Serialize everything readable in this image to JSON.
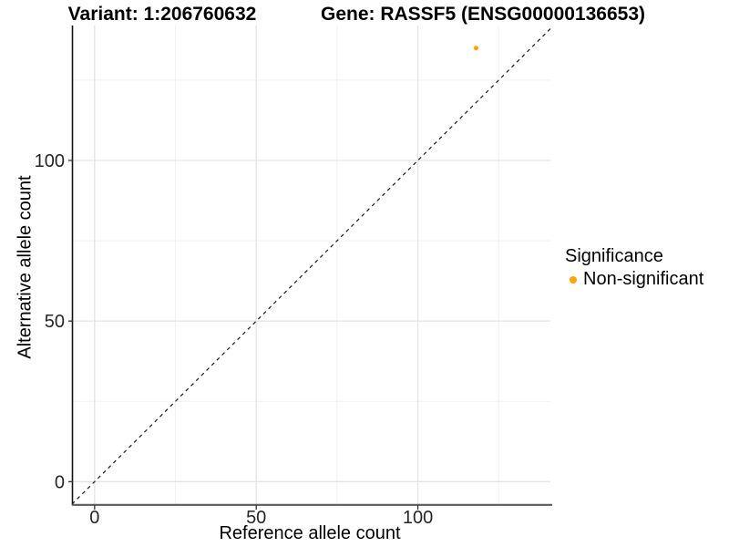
{
  "titles": {
    "variant": "Variant: 1:206760632",
    "gene": "Gene: RASSF5 (ENSG00000136653)"
  },
  "chart_data": {
    "type": "scatter",
    "title_left": "Variant: 1:206760632",
    "title_right": "Gene: RASSF5 (ENSG00000136653)",
    "xlabel": "Reference allele count",
    "ylabel": "Alternative allele count",
    "xlim": [
      -7,
      141
    ],
    "ylim": [
      -7,
      142
    ],
    "x_major_ticks": [
      0,
      50,
      100
    ],
    "y_major_ticks": [
      0,
      50,
      100
    ],
    "x_minor_ticks": [
      25,
      75,
      125
    ],
    "y_minor_ticks": [
      25,
      75,
      125
    ],
    "grid": true,
    "background": "#ffffff",
    "identity_line": {
      "style": "dashed",
      "color": "#1a1a1a",
      "from": -7,
      "to": 141
    },
    "series": [
      {
        "name": "Non-significant",
        "color": "#FFA500",
        "points": [
          {
            "x": 118,
            "y": 135
          }
        ]
      }
    ],
    "legend": {
      "title": "Significance",
      "position": "right",
      "entries": [
        {
          "label": "Non-significant",
          "color": "#FFA500"
        }
      ]
    }
  }
}
